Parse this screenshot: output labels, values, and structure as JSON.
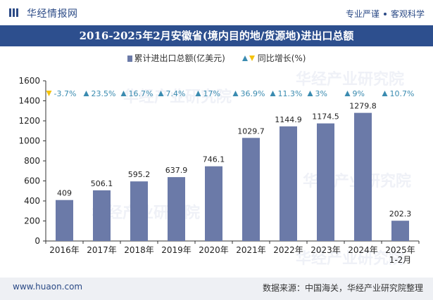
{
  "header": {
    "brand": "华经情报网",
    "slogan_left": "专业严谨",
    "slogan_right": "客观科学"
  },
  "title": "2016-2025年2月安徽省(境内目的地/货源地)进出口总额",
  "legend": {
    "bar_label": "累计进出口总额(亿美元)",
    "growth_label": "同比增长(%)"
  },
  "footer": {
    "site": "www.huaon.com",
    "source": "数据来源：中国海关，华经产业研究院整理"
  },
  "watermark": "华经产业研究院",
  "colors": {
    "bar": "#6b7aa8",
    "up": "#3a8bb0",
    "down": "#f4c20d",
    "title_bg": "#2d4f8e"
  },
  "chart_data": {
    "type": "bar",
    "categories": [
      "2016年",
      "2017年",
      "2018年",
      "2019年",
      "2020年",
      "2021年",
      "2022年",
      "2023年",
      "2024年",
      "2025年\n1-2月"
    ],
    "series": [
      {
        "name": "累计进出口总额(亿美元)",
        "values": [
          409,
          506.1,
          595.2,
          637.9,
          746.1,
          1029.7,
          1144.9,
          1174.5,
          1279.8,
          202.3
        ],
        "labels": [
          "409",
          "506.1",
          "595.2",
          "637.9",
          "746.1",
          "1029.7",
          "1144.9",
          "1174.5",
          "1279.8",
          "202.3"
        ]
      },
      {
        "name": "同比增长(%)",
        "values": [
          -3.7,
          23.5,
          16.7,
          7.4,
          17,
          36.9,
          11.3,
          3,
          9,
          10.7
        ],
        "labels": [
          "-3.7%",
          "23.5%",
          "16.7%",
          "7.4%",
          "17%",
          "36.9%",
          "11.3%",
          "3%",
          "9%",
          "10.7%"
        ]
      }
    ],
    "ylim": [
      0,
      1600
    ],
    "yticks": [
      0,
      200,
      400,
      600,
      800,
      1000,
      1200,
      1400,
      1600
    ],
    "grid": false
  }
}
